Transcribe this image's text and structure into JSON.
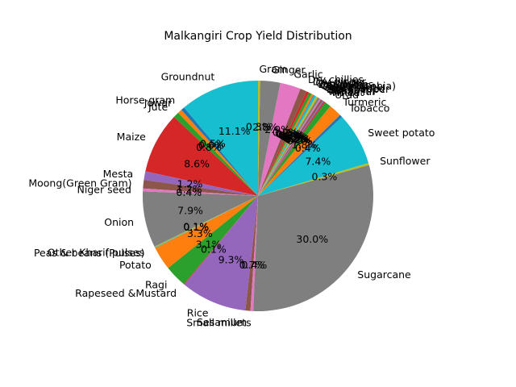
{
  "chart_data": {
    "type": "pie",
    "title": "Malkangiri Crop Yield Distribution",
    "start_angle_deg": 90,
    "direction": "counterclockwise",
    "autopct_format": "%.1f%%",
    "slices": [
      {
        "label": "Groundnut",
        "value": 11.1,
        "color": "#17becf"
      },
      {
        "label": "Horse-gram",
        "value": 0.5,
        "color": "#1f77b4"
      },
      {
        "label": "Jowar",
        "value": 0.6,
        "color": "#ff7f0e"
      },
      {
        "label": "Jute",
        "value": 0.8,
        "color": "#2ca02c"
      },
      {
        "label": "Maize",
        "value": 8.6,
        "color": "#d62728"
      },
      {
        "label": "Mesta",
        "value": 1.2,
        "color": "#9467bd"
      },
      {
        "label": "Moong(Green Gram)",
        "value": 1.2,
        "color": "#8c564b"
      },
      {
        "label": "Niger seed",
        "value": 0.4,
        "color": "#e377c2"
      },
      {
        "label": "Onion",
        "value": 7.9,
        "color": "#7f7f7f"
      },
      {
        "label": "Other Kharif pulses",
        "value": 0.1,
        "color": "#bcbd22"
      },
      {
        "label": "Peas & beans (Pulses)",
        "value": 0.1,
        "color": "#17becf"
      },
      {
        "label": "Potato",
        "value": 3.3,
        "color": "#ff7f0e"
      },
      {
        "label": "Ragi",
        "value": 3.1,
        "color": "#2ca02c"
      },
      {
        "label": "Rapeseed &Mustard",
        "value": 0.1,
        "color": "#d62728"
      },
      {
        "label": "Rice",
        "value": 9.3,
        "color": "#9467bd"
      },
      {
        "label": "Sesamum",
        "value": 0.7,
        "color": "#8c564b"
      },
      {
        "label": "Small millets",
        "value": 0.4,
        "color": "#e377c2"
      },
      {
        "label": "Sugarcane",
        "value": 30.0,
        "color": "#7f7f7f"
      },
      {
        "label": "Sunflower",
        "value": 0.3,
        "color": "#bcbd22"
      },
      {
        "label": "Sweet potato",
        "value": 7.4,
        "color": "#17becf"
      },
      {
        "label": "Tobacco",
        "value": 0.4,
        "color": "#1f77b4"
      },
      {
        "label": "Turmeric",
        "value": 1.8,
        "color": "#ff7f0e"
      },
      {
        "label": "Urad",
        "value": 0.9,
        "color": "#2ca02c"
      },
      {
        "label": "Wheat",
        "value": 0.2,
        "color": "#d62728"
      },
      {
        "label": "Arhar/Tur",
        "value": 0.2,
        "color": "#9467bd"
      },
      {
        "label": "Bajra",
        "value": 0.3,
        "color": "#8c564b"
      },
      {
        "label": "Blackpepper",
        "value": 0.2,
        "color": "#e377c2"
      },
      {
        "label": "Castor seed",
        "value": 0.3,
        "color": "#7f7f7f"
      },
      {
        "label": "Cotton(lint)",
        "value": 0.3,
        "color": "#bcbd22"
      },
      {
        "label": "Cowpea(Lobia)",
        "value": 0.3,
        "color": "#17becf"
      },
      {
        "label": "Coriander",
        "value": 0.1,
        "color": "#1f77b4"
      },
      {
        "label": "Dry chillies",
        "value": 0.3,
        "color": "#ff7f0e"
      },
      {
        "label": "Cabbage",
        "value": 0.4,
        "color": "#2ca02c"
      },
      {
        "label": "Dry ginger",
        "value": 0.4,
        "color": "#d62728"
      },
      {
        "label": "Dry chillies",
        "value": 0.9,
        "color": "#8c564b"
      },
      {
        "label": "Garlic",
        "value": 2.9,
        "color": "#e377c2"
      },
      {
        "label": "Ginger",
        "value": 2.8,
        "color": "#7f7f7f"
      },
      {
        "label": "Gram",
        "value": 0.3,
        "color": "#bcbd22"
      }
    ]
  }
}
